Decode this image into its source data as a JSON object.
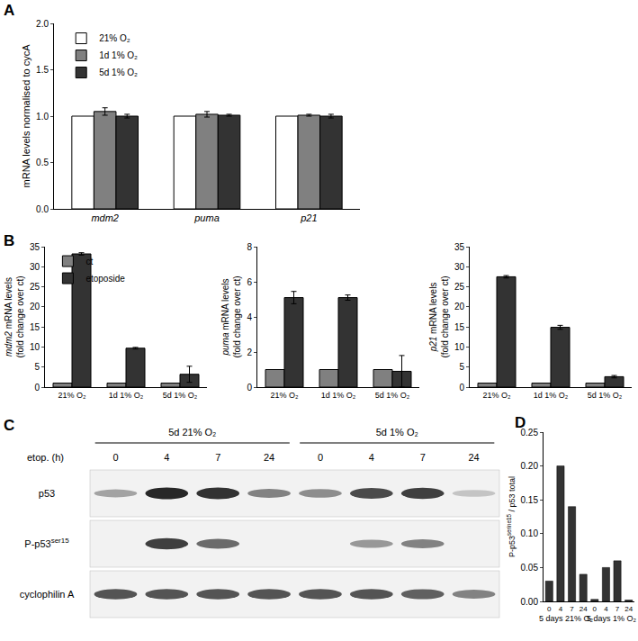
{
  "chart_data": [
    {
      "panel": "A",
      "type": "bar",
      "y_label": "mRNA levels normalised to cycA",
      "categories": [
        "mdm2",
        "puma",
        "p21"
      ],
      "series": [
        {
          "name": "21% O₂",
          "color": "#ffffff",
          "values": [
            1.0,
            1.0,
            1.0
          ]
        },
        {
          "name": "1d 1% O₂",
          "color": "#808080",
          "values": [
            1.05,
            1.02,
            1.01
          ],
          "errors": [
            0.04,
            0.03,
            0.01
          ]
        },
        {
          "name": "5d 1% O₂",
          "color": "#333333",
          "values": [
            1.0,
            1.01,
            1.0
          ],
          "errors": [
            0.02,
            0.01,
            0.02
          ]
        }
      ],
      "ylim": [
        0,
        2
      ],
      "yticks": [
        {
          "value": 0,
          "label": "0.0"
        },
        {
          "value": 0.5,
          "label": "0.5"
        },
        {
          "value": 1,
          "label": "1.0"
        },
        {
          "value": 1.5,
          "label": "1.5"
        },
        {
          "value": 2,
          "label": "2.0"
        }
      ],
      "grid": false,
      "legend": "upper left"
    },
    {
      "panel": "B",
      "type": "bar",
      "y_label": [
        "mdm2 mRNA levels",
        "(fold change over ct)"
      ],
      "categories": [
        "21% O₂",
        "1d 1% O₂",
        "5d 1% O₂"
      ],
      "series": [
        {
          "name": "ct",
          "color": "#808080",
          "values": [
            1,
            1,
            1
          ]
        },
        {
          "name": "etoposide",
          "color": "#333333",
          "values": [
            33.2,
            9.7,
            3.2
          ],
          "errors": [
            0.3,
            0.2,
            2.0
          ]
        }
      ],
      "ylim": [
        0,
        35
      ],
      "yticks": [
        0,
        5,
        10,
        15,
        20,
        25,
        30,
        35
      ],
      "grid": false,
      "legend": "upper left"
    },
    {
      "type": "bar",
      "y_label": [
        "puma mRNA levels",
        "(fold change over ct)"
      ],
      "categories": [
        "21% O₂",
        "1d 1% O₂",
        "5d 1% O₂"
      ],
      "series": [
        {
          "name": "ct",
          "color": "#808080",
          "values": [
            1,
            1,
            1
          ]
        },
        {
          "name": "etoposide",
          "color": "#333333",
          "values": [
            5.1,
            5.1,
            0.9
          ],
          "errors": [
            0.35,
            0.15,
            0.9
          ]
        }
      ],
      "ylim": [
        0,
        8
      ],
      "yticks": [
        0,
        2,
        4,
        6,
        8
      ],
      "grid": false
    },
    {
      "type": "bar",
      "y_label": [
        "p21 mRNA levels",
        "(fold change over ct)"
      ],
      "categories": [
        "21% O₂",
        "1d 1% O₂",
        "5d 1% O₂"
      ],
      "series": [
        {
          "name": "ct",
          "color": "#808080",
          "values": [
            1,
            1,
            1
          ]
        },
        {
          "name": "etoposide",
          "color": "#333333",
          "values": [
            27.5,
            14.9,
            2.6
          ],
          "errors": [
            0.3,
            0.5,
            0.3
          ]
        }
      ],
      "ylim": [
        0,
        35
      ],
      "yticks": [
        0,
        5,
        10,
        15,
        20,
        25,
        30,
        35
      ],
      "grid": false
    },
    {
      "panel": "D",
      "type": "bar",
      "y_label": {
        "text": "P-p53",
        "superscript": "serine15",
        "rest": " / p53 total"
      },
      "categories": [
        "0",
        "4",
        "7",
        "24",
        "0",
        "4",
        "7",
        "24"
      ],
      "groups": [
        "5 days 21% O₂",
        "5 days 1% O₂"
      ],
      "values": [
        0.03,
        0.2,
        0.14,
        0.04,
        0.003,
        0.05,
        0.06,
        0.002
      ],
      "color": "#333333",
      "ylim": [
        0,
        0.25
      ],
      "yticks": [
        {
          "value": 0,
          "label": "0.00"
        },
        {
          "value": 0.05,
          "label": "0.05"
        },
        {
          "value": 0.1,
          "label": "0.10"
        },
        {
          "value": 0.15,
          "label": "0.15"
        },
        {
          "value": 0.2,
          "label": "0.20"
        },
        {
          "value": 0.25,
          "label": "0.25"
        }
      ],
      "grid": false
    }
  ],
  "blot": {
    "panel": "C",
    "lane_title": "etop. (h)",
    "groups": [
      "5d 21% O₂",
      "5d 1% O₂"
    ],
    "lanes": [
      "0",
      "4",
      "7",
      "24",
      "0",
      "4",
      "7",
      "24"
    ],
    "rows": [
      {
        "label": {
          "text": "p53",
          "superscript": ""
        },
        "intensity": [
          0.35,
          0.9,
          0.85,
          0.5,
          0.45,
          0.75,
          0.8,
          0.2
        ]
      },
      {
        "label": {
          "text": "P-p53",
          "superscript": "ser15"
        },
        "intensity": [
          0,
          0.8,
          0.6,
          0,
          0,
          0.4,
          0.5,
          0
        ]
      },
      {
        "label": {
          "text": "cyclophilin A",
          "superscript": ""
        },
        "intensity": [
          0.7,
          0.7,
          0.7,
          0.7,
          0.7,
          0.7,
          0.65,
          0.5
        ]
      }
    ]
  }
}
